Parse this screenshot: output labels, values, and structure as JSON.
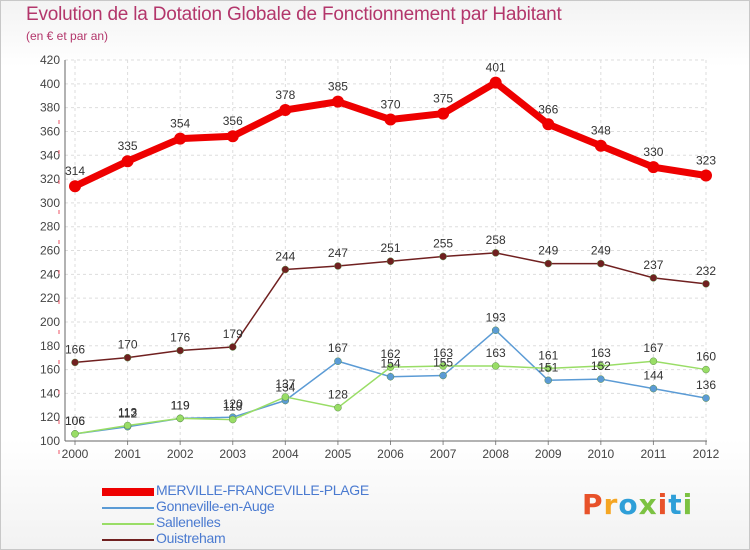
{
  "header": {
    "title": "Evolution de la Dotation Globale de Fonctionnement par Habitant",
    "subtitle": "(en € et par an)"
  },
  "logo": {
    "text": "Proxiti",
    "colors": [
      "#e8522a",
      "#f5a623",
      "#2f9fd8",
      "#7cc242",
      "#e8522a",
      "#2f9fd8",
      "#7cc242"
    ]
  },
  "chart_data": {
    "type": "line",
    "x": [
      "2000",
      "2001",
      "2002",
      "2003",
      "2004",
      "2005",
      "2006",
      "2007",
      "2008",
      "2009",
      "2010",
      "2011",
      "2012"
    ],
    "ylim": [
      100,
      420
    ],
    "yticks": [
      100,
      120,
      140,
      160,
      180,
      200,
      220,
      240,
      260,
      280,
      300,
      320,
      340,
      360,
      380,
      400,
      420
    ],
    "grid": true,
    "legend_position": "bottom-left",
    "series": [
      {
        "name": "MERVILLE-FRANCEVILLE-PLAGE",
        "color": "#ee0000",
        "values": [
          314,
          335,
          354,
          356,
          378,
          385,
          370,
          375,
          401,
          366,
          348,
          330,
          323
        ]
      },
      {
        "name": "Gonneville-en-Auge",
        "color": "#5b9bd5",
        "values": [
          106,
          112,
          119,
          120,
          134,
          167,
          154,
          155,
          193,
          151,
          152,
          144,
          136
        ]
      },
      {
        "name": "Sallenelles",
        "color": "#99dd66",
        "values": [
          106,
          113,
          119,
          118,
          137,
          128,
          162,
          163,
          163,
          161,
          163,
          167,
          160
        ]
      },
      {
        "name": "Ouistreham",
        "color": "#702020",
        "values": [
          166,
          170,
          176,
          179,
          244,
          247,
          251,
          255,
          258,
          249,
          249,
          237,
          232
        ]
      }
    ]
  }
}
